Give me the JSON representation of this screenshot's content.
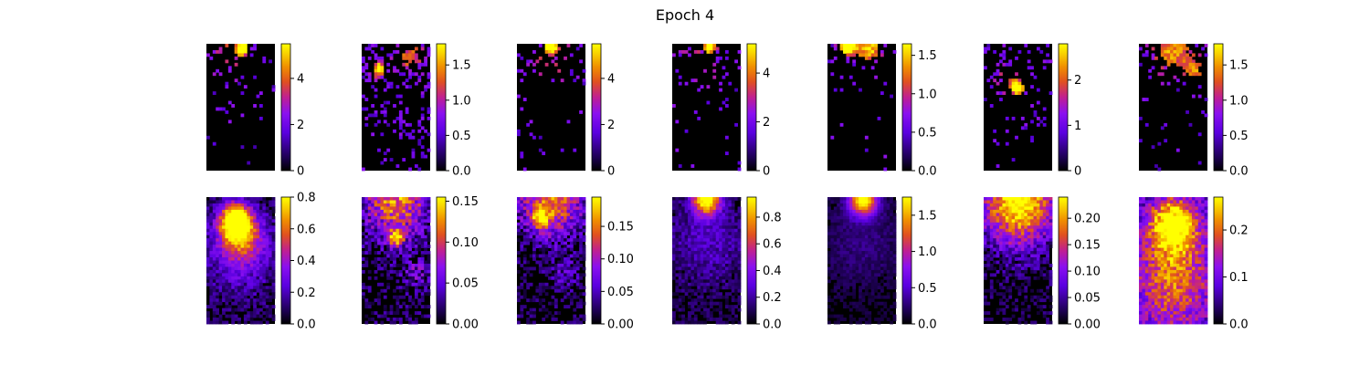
{
  "chart_data": {
    "type": "heatmap",
    "title": "Epoch 4",
    "colormap": "gnuplot",
    "rows": [
      [
        {
          "cbar": {
            "max": 5.5,
            "ticks": [
              0,
              2,
              4
            ],
            "labels": [
              "0",
              "2",
              "4"
            ]
          },
          "hotspots": [
            [
              0.52,
              0.04,
              0.08,
              1.0
            ],
            [
              0.3,
              0.08,
              0.25,
              0.3
            ]
          ],
          "sparse": 0.18,
          "fade": 0.28
        },
        {
          "cbar": {
            "max": 1.8,
            "ticks": [
              0,
              0.5,
              1.0,
              1.5
            ],
            "labels": [
              "0.0",
              "0.5",
              "1.0",
              "1.5"
            ]
          },
          "hotspots": [
            [
              0.25,
              0.2,
              0.1,
              0.7
            ],
            [
              0.7,
              0.1,
              0.2,
              0.4
            ]
          ],
          "sparse": 0.35,
          "fade": 0.75
        },
        {
          "cbar": {
            "max": 5.5,
            "ticks": [
              0,
              2,
              4
            ],
            "labels": [
              "0",
              "2",
              "4"
            ]
          },
          "hotspots": [
            [
              0.5,
              0.02,
              0.08,
              1.0
            ],
            [
              0.5,
              0.1,
              0.3,
              0.25
            ]
          ],
          "sparse": 0.2,
          "fade": 0.3
        },
        {
          "cbar": {
            "max": 5.2,
            "ticks": [
              0,
              2,
              4
            ],
            "labels": [
              "0",
              "2",
              "4"
            ]
          },
          "hotspots": [
            [
              0.55,
              0.02,
              0.07,
              1.0
            ],
            [
              0.4,
              0.15,
              0.3,
              0.25
            ]
          ],
          "sparse": 0.18,
          "fade": 0.4
        },
        {
          "cbar": {
            "max": 1.65,
            "ticks": [
              0,
              0.5,
              1.0,
              1.5
            ],
            "labels": [
              "0.0",
              "0.5",
              "1.0",
              "1.5"
            ]
          },
          "hotspots": [
            [
              0.3,
              0.02,
              0.12,
              0.9
            ],
            [
              0.6,
              0.03,
              0.2,
              0.6
            ]
          ],
          "sparse": 0.2,
          "fade": 0.15
        },
        {
          "cbar": {
            "max": 2.8,
            "ticks": [
              0,
              1,
              2
            ],
            "labels": [
              "0",
              "1",
              "2"
            ]
          },
          "hotspots": [
            [
              0.5,
              0.35,
              0.07,
              1.0
            ],
            [
              0.4,
              0.3,
              0.2,
              0.35
            ]
          ],
          "sparse": 0.15,
          "fade": 0.6
        },
        {
          "cbar": {
            "max": 1.8,
            "ticks": [
              0,
              0.5,
              1.0,
              1.5
            ],
            "labels": [
              "0.0",
              "0.5",
              "1.0",
              "1.5"
            ]
          },
          "hotspots": [
            [
              0.5,
              0.05,
              0.3,
              0.5
            ],
            [
              0.8,
              0.2,
              0.15,
              0.4
            ]
          ],
          "sparse": 0.18,
          "fade": 0.35
        }
      ],
      [
        {
          "cbar": {
            "max": 0.8,
            "ticks": [
              0,
              0.2,
              0.4,
              0.6,
              0.8
            ],
            "labels": [
              "0.0",
              "0.2",
              "0.4",
              "0.6",
              "0.8"
            ]
          },
          "hotspots": [
            [
              0.42,
              0.18,
              0.22,
              0.95
            ],
            [
              0.5,
              0.3,
              0.3,
              0.55
            ],
            [
              0.5,
              0.45,
              0.5,
              0.3
            ]
          ],
          "noise": 0.25,
          "base": 0.06
        },
        {
          "cbar": {
            "max": 0.155,
            "ticks": [
              0,
              0.05,
              0.1,
              0.15
            ],
            "labels": [
              "0.00",
              "0.05",
              "0.10",
              "0.15"
            ]
          },
          "hotspots": [
            [
              0.5,
              0.02,
              0.5,
              0.75
            ],
            [
              0.5,
              0.33,
              0.12,
              0.75
            ],
            [
              0.8,
              0.6,
              0.2,
              0.3
            ]
          ],
          "noise": 0.45,
          "base": 0.0
        },
        {
          "cbar": {
            "max": 0.195,
            "ticks": [
              0,
              0.05,
              0.1,
              0.15
            ],
            "labels": [
              "0.00",
              "0.05",
              "0.10",
              "0.15"
            ]
          },
          "hotspots": [
            [
              0.5,
              0.02,
              0.5,
              0.75
            ],
            [
              0.35,
              0.17,
              0.12,
              0.6
            ],
            [
              0.7,
              0.6,
              0.2,
              0.25
            ]
          ],
          "noise": 0.4,
          "base": 0.0
        },
        {
          "cbar": {
            "max": 0.95,
            "ticks": [
              0,
              0.2,
              0.4,
              0.6,
              0.8
            ],
            "labels": [
              "0.0",
              "0.2",
              "0.4",
              "0.6",
              "0.8"
            ]
          },
          "hotspots": [
            [
              0.5,
              0.02,
              0.2,
              1.0
            ],
            [
              0.5,
              0.35,
              0.6,
              0.2
            ]
          ],
          "noise": 0.2,
          "base": 0.05
        },
        {
          "cbar": {
            "max": 1.75,
            "ticks": [
              0,
              0.5,
              1.0,
              1.5
            ],
            "labels": [
              "0.0",
              "0.5",
              "1.0",
              "1.5"
            ]
          },
          "hotspots": [
            [
              0.52,
              0.02,
              0.2,
              1.0
            ],
            [
              0.5,
              0.35,
              0.6,
              0.12
            ]
          ],
          "noise": 0.1,
          "base": 0.04
        },
        {
          "cbar": {
            "max": 0.24,
            "ticks": [
              0,
              0.05,
              0.1,
              0.15,
              0.2
            ],
            "labels": [
              "0.00",
              "0.05",
              "0.10",
              "0.15",
              "0.20"
            ]
          },
          "hotspots": [
            [
              0.5,
              0.0,
              0.5,
              0.75
            ],
            [
              0.5,
              0.15,
              0.6,
              0.35
            ]
          ],
          "noise": 0.35,
          "base": 0.0
        },
        {
          "cbar": {
            "max": 0.27,
            "ticks": [
              0,
              0.1,
              0.2
            ],
            "labels": [
              "0.0",
              "0.1",
              "0.2"
            ]
          },
          "hotspots": [
            [
              0.5,
              0.2,
              0.35,
              0.8
            ],
            [
              0.5,
              0.5,
              0.6,
              0.45
            ],
            [
              0.5,
              0.85,
              0.6,
              0.3
            ]
          ],
          "noise": 0.35,
          "base": 0.15
        }
      ]
    ]
  }
}
